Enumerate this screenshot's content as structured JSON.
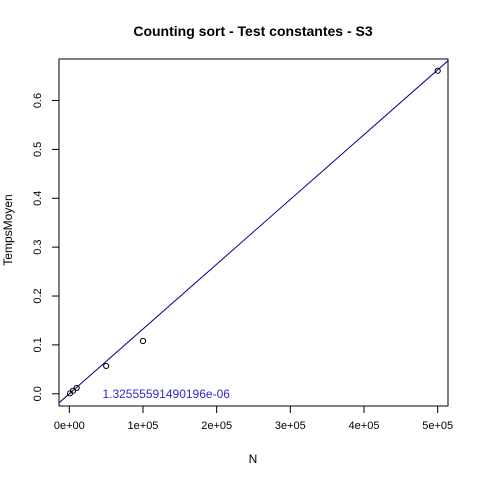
{
  "chart_data": {
    "type": "scatter",
    "title": "Counting sort - Test constantes - S3",
    "xlabel": "N",
    "ylabel": "TempsMoyen",
    "xlim": [
      -14000,
      514000
    ],
    "ylim": [
      -0.025,
      0.685
    ],
    "xticks": [
      {
        "value": 0,
        "label": "0e+00"
      },
      {
        "value": 100000,
        "label": "1e+05"
      },
      {
        "value": 200000,
        "label": "2e+05"
      },
      {
        "value": 300000,
        "label": "3e+05"
      },
      {
        "value": 400000,
        "label": "4e+05"
      },
      {
        "value": 500000,
        "label": "5e+05"
      }
    ],
    "yticks": [
      {
        "value": 0.0,
        "label": "0.0"
      },
      {
        "value": 0.1,
        "label": "0.1"
      },
      {
        "value": 0.2,
        "label": "0.2"
      },
      {
        "value": 0.3,
        "label": "0.3"
      },
      {
        "value": 0.4,
        "label": "0.4"
      },
      {
        "value": 0.5,
        "label": "0.5"
      },
      {
        "value": 0.6,
        "label": "0.6"
      }
    ],
    "points": [
      {
        "x": 1000,
        "y": 0.001
      },
      {
        "x": 5000,
        "y": 0.006
      },
      {
        "x": 10000,
        "y": 0.012
      },
      {
        "x": 50000,
        "y": 0.057
      },
      {
        "x": 100000,
        "y": 0.108
      },
      {
        "x": 500000,
        "y": 0.661
      }
    ],
    "fit_line": {
      "slope": 1.32555591490196e-06,
      "intercept": 0,
      "color": "#00008b"
    },
    "annotation": {
      "text": "1.32555591490196e-06",
      "x": 45000,
      "y": 0.0,
      "color": "#2b2bcc"
    },
    "grid": false,
    "point_color": "#000000"
  }
}
